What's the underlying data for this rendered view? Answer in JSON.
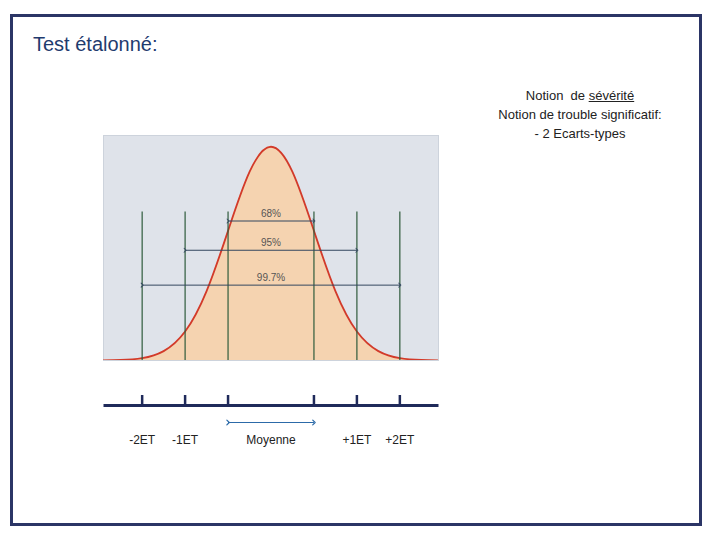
{
  "slide": {
    "title": "Test étalonné:",
    "notes": [
      {
        "prefix": "Notion  de ",
        "emphasis": "sévérité"
      },
      "Notion de trouble significatif:",
      "- 2 Ecarts-types"
    ]
  },
  "chart_data": {
    "type": "area",
    "x": [
      -3.9,
      -3.5,
      -3,
      -2.5,
      -2,
      -1.5,
      -1,
      -0.5,
      0,
      0.5,
      1,
      1.5,
      2,
      2.5,
      3,
      3.5,
      3.9
    ],
    "values": [
      0.0002,
      0.0009,
      0.0044,
      0.0175,
      0.054,
      0.1295,
      0.242,
      0.352,
      0.399,
      0.352,
      0.242,
      0.1295,
      0.054,
      0.0175,
      0.0044,
      0.0009,
      0.0002
    ],
    "color": "#d23a2a",
    "xlim": [
      -3.9,
      3.9
    ],
    "ylim": [
      0,
      0.42
    ],
    "grid": false,
    "tick_labels": false,
    "ranges": [
      {
        "label": "68%",
        "value": 68,
        "from": -1,
        "to": 1
      },
      {
        "label": "95%",
        "value": 95,
        "from": -2,
        "to": 2
      },
      {
        "label": "99.7%",
        "value": 99.7,
        "from": -3,
        "to": 3
      }
    ],
    "bottom_axis": [
      {
        "label": "-2ET",
        "value": -3
      },
      {
        "label": "-1ET",
        "value": -2
      },
      {
        "label": "Moyenne",
        "from": -1,
        "to": 1
      },
      {
        "label": "+1ET",
        "value": 2
      },
      {
        "label": "+2ET",
        "value": 3
      }
    ]
  }
}
